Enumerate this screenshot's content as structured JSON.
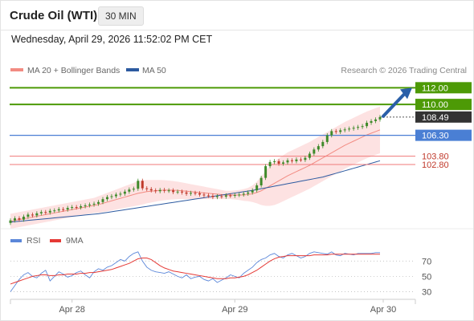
{
  "header": {
    "title": "Crude Oil (WTI)",
    "interval": "30 MIN",
    "datetime": "Wednesday, April 29, 2026 11:52:02 PM CET"
  },
  "legend": {
    "items": [
      {
        "label": "MA 20 + Bollinger Bands",
        "color": "#f28b82"
      },
      {
        "label": "MA 50",
        "color": "#2c5aa0"
      }
    ],
    "credit": "Research © 2026 Trading Central"
  },
  "colors": {
    "green": "#4d9a06",
    "blue_level": "#4a7fd4",
    "red_level": "#f07a7a",
    "arrow": "#2a5fa8",
    "up_candle": "#3e8a2a",
    "down_candle": "#c0392b",
    "bands_fill": "#fde2e2",
    "ma20": "#f28b82",
    "ma50": "#2c5aa0",
    "rsi": "#5b87d9",
    "rsi_ma": "#e53935"
  },
  "chart_data": [
    {
      "type": "line",
      "x_ticks": [
        "Apr 28",
        "Apr 29",
        "Apr 30"
      ],
      "levels": [
        {
          "label": "112.00",
          "value": 112.0,
          "style": "resistance-target"
        },
        {
          "label": "110.00",
          "value": 110.0,
          "style": "resistance"
        },
        {
          "label": "108.49",
          "value": 108.49,
          "style": "last-price"
        },
        {
          "label": "106.30",
          "value": 106.3,
          "style": "pivot"
        },
        {
          "label": "103.80",
          "value": 103.8,
          "style": "support"
        },
        {
          "label": "102.80",
          "value": 102.8,
          "style": "support"
        }
      ],
      "ylim": [
        95.3,
        112.8
      ],
      "grid": false,
      "legend_position": "top",
      "series": [
        {
          "name": "MA 20 + Bollinger Bands"
        },
        {
          "name": "MA 50"
        }
      ],
      "close": [
        96.1,
        96.35,
        96.2,
        96.55,
        96.8,
        96.7,
        96.95,
        97.1,
        97.05,
        97.25,
        97.3,
        97.45,
        97.4,
        97.6,
        97.7,
        97.65,
        97.8,
        97.9,
        98.0,
        98.1,
        98.3,
        98.65,
        98.9,
        99.0,
        99.2,
        99.3,
        99.55,
        99.8,
        99.9,
        100.85,
        99.95,
        99.85,
        99.7,
        99.6,
        99.75,
        99.65,
        99.7,
        99.5,
        99.55,
        99.45,
        99.3,
        99.4,
        99.35,
        99.2,
        99.1,
        99.05,
        98.9,
        99.0,
        98.95,
        99.1,
        99.05,
        99.15,
        99.2,
        99.3,
        99.45,
        99.7,
        100.3,
        101.2,
        102.6,
        103.1,
        103.2,
        102.9,
        103.05,
        103.3,
        103.2,
        103.4,
        103.35,
        103.6,
        104.1,
        104.6,
        105.0,
        105.5,
        106.3,
        106.8,
        106.7,
        106.9,
        107.0,
        107.1,
        107.2,
        107.3,
        107.4,
        107.8,
        108.0,
        108.2,
        108.49
      ],
      "open": [
        95.8,
        96.1,
        96.35,
        96.2,
        96.55,
        96.8,
        96.7,
        96.95,
        97.1,
        97.05,
        97.25,
        97.3,
        97.45,
        97.4,
        97.6,
        97.7,
        97.65,
        97.8,
        97.9,
        98.0,
        98.1,
        98.3,
        98.65,
        98.9,
        99.0,
        99.2,
        99.3,
        99.55,
        99.8,
        99.9,
        100.85,
        99.95,
        99.85,
        99.7,
        99.6,
        99.75,
        99.65,
        99.7,
        99.5,
        99.55,
        99.45,
        99.3,
        99.4,
        99.35,
        99.2,
        99.1,
        99.05,
        98.9,
        99.0,
        98.95,
        99.1,
        99.05,
        99.15,
        99.2,
        99.3,
        99.45,
        99.7,
        100.3,
        101.2,
        102.6,
        103.1,
        103.2,
        102.9,
        103.05,
        103.3,
        103.2,
        103.4,
        103.35,
        103.6,
        104.1,
        104.6,
        105.0,
        105.5,
        106.3,
        106.8,
        106.7,
        106.9,
        107.0,
        107.1,
        107.2,
        107.3,
        107.4,
        107.8,
        108.0,
        108.2
      ],
      "ma20": [
        96.0,
        96.1,
        96.2,
        96.3,
        96.4,
        96.5,
        96.6,
        96.7,
        96.8,
        96.9,
        97.0,
        97.1,
        97.2,
        97.3,
        97.4,
        97.5,
        97.6,
        97.7,
        97.8,
        97.9,
        98.0,
        98.15,
        98.3,
        98.45,
        98.6,
        98.75,
        98.9,
        99.05,
        99.2,
        99.35,
        99.45,
        99.55,
        99.6,
        99.65,
        99.7,
        99.72,
        99.73,
        99.72,
        99.7,
        99.65,
        99.6,
        99.55,
        99.5,
        99.45,
        99.4,
        99.35,
        99.3,
        99.25,
        99.2,
        99.15,
        99.15,
        99.15,
        99.15,
        99.15,
        99.2,
        99.3,
        99.45,
        99.65,
        99.95,
        100.25,
        100.55,
        100.85,
        101.15,
        101.45,
        101.7,
        101.95,
        102.2,
        102.45,
        102.7,
        103.0,
        103.3,
        103.6,
        103.9,
        104.2,
        104.5,
        104.8,
        105.1,
        105.35,
        105.6,
        105.85,
        106.1,
        106.35,
        106.55,
        106.75,
        106.95
      ],
      "ma50": [
        95.9,
        95.95,
        96.0,
        96.05,
        96.1,
        96.15,
        96.2,
        96.25,
        96.3,
        96.35,
        96.4,
        96.45,
        96.5,
        96.55,
        96.6,
        96.65,
        96.7,
        96.75,
        96.8,
        96.85,
        96.9,
        96.98,
        97.06,
        97.14,
        97.22,
        97.3,
        97.38,
        97.46,
        97.54,
        97.62,
        97.7,
        97.78,
        97.86,
        97.94,
        98.02,
        98.1,
        98.18,
        98.26,
        98.34,
        98.42,
        98.5,
        98.58,
        98.66,
        98.74,
        98.82,
        98.9,
        98.98,
        99.06,
        99.14,
        99.22,
        99.3,
        99.38,
        99.46,
        99.54,
        99.62,
        99.7,
        99.8,
        99.9,
        100.0,
        100.1,
        100.2,
        100.3,
        100.4,
        100.5,
        100.6,
        100.7,
        100.8,
        100.9,
        101.0,
        101.1,
        101.2,
        101.3,
        101.45,
        101.6,
        101.75,
        101.9,
        102.05,
        102.2,
        102.35,
        102.5,
        102.65,
        102.8,
        102.95,
        103.1,
        103.25
      ],
      "bb_width": [
        0.9,
        0.9,
        0.9,
        0.9,
        0.9,
        0.9,
        0.9,
        0.9,
        0.9,
        0.9,
        0.9,
        0.9,
        0.9,
        0.9,
        0.9,
        0.9,
        0.9,
        0.9,
        0.9,
        0.9,
        1.0,
        1.05,
        1.1,
        1.15,
        1.2,
        1.25,
        1.3,
        1.35,
        1.4,
        1.45,
        1.45,
        1.4,
        1.35,
        1.3,
        1.25,
        1.2,
        1.15,
        1.1,
        1.05,
        1.0,
        0.95,
        0.9,
        0.85,
        0.8,
        0.75,
        0.7,
        0.65,
        0.6,
        0.55,
        0.5,
        0.5,
        0.55,
        0.6,
        0.7,
        0.8,
        1.0,
        1.3,
        1.7,
        2.1,
        2.4,
        2.6,
        2.7,
        2.75,
        2.8,
        2.8,
        2.8,
        2.8,
        2.8,
        2.8,
        2.8,
        2.8,
        2.8,
        2.8,
        2.8,
        2.8,
        2.8,
        2.8,
        2.8,
        2.8,
        2.8,
        2.8,
        2.8,
        2.8,
        2.8,
        2.8
      ],
      "forecast_arrow": {
        "from": 108.49,
        "to": 112.0
      }
    },
    {
      "type": "line",
      "legend_position": "top-left",
      "levels": [
        {
          "label": "70",
          "value": 70
        },
        {
          "label": "50",
          "value": 50
        },
        {
          "label": "30",
          "value": 30
        }
      ],
      "ylim": [
        20,
        85
      ],
      "series": [
        {
          "name": "RSI",
          "values": [
            30,
            38,
            46,
            52,
            55,
            50,
            48,
            54,
            58,
            44,
            50,
            56,
            53,
            49,
            51,
            55,
            57,
            52,
            48,
            56,
            60,
            58,
            62,
            64,
            68,
            72,
            70,
            76,
            80,
            82,
            70,
            62,
            58,
            56,
            55,
            54,
            56,
            53,
            50,
            48,
            52,
            47,
            49,
            50,
            46,
            44,
            47,
            42,
            45,
            48,
            52,
            50,
            48,
            54,
            58,
            62,
            68,
            72,
            74,
            78,
            80,
            76,
            74,
            78,
            80,
            77,
            74,
            76,
            80,
            82,
            81,
            80,
            79,
            82,
            78,
            77,
            80,
            79,
            78,
            80,
            80,
            80,
            80,
            81,
            81
          ]
        },
        {
          "name": "9MA",
          "values": [
            40,
            42,
            44,
            46,
            48,
            50,
            51,
            52,
            52,
            51,
            51,
            52,
            52,
            53,
            53,
            53,
            54,
            54,
            55,
            55,
            56,
            57,
            58,
            59,
            61,
            63,
            65,
            67,
            70,
            73,
            74,
            74,
            72,
            68,
            64,
            61,
            59,
            57,
            56,
            55,
            54,
            53,
            52,
            51,
            50,
            49,
            48,
            47,
            47,
            47,
            48,
            48,
            49,
            50,
            52,
            55,
            58,
            62,
            66,
            70,
            73,
            75,
            76,
            77,
            77,
            77,
            77,
            77,
            77,
            78,
            78,
            78,
            78,
            79,
            79,
            79,
            79,
            79,
            79,
            79,
            79,
            79,
            79,
            79,
            79
          ]
        }
      ]
    }
  ]
}
